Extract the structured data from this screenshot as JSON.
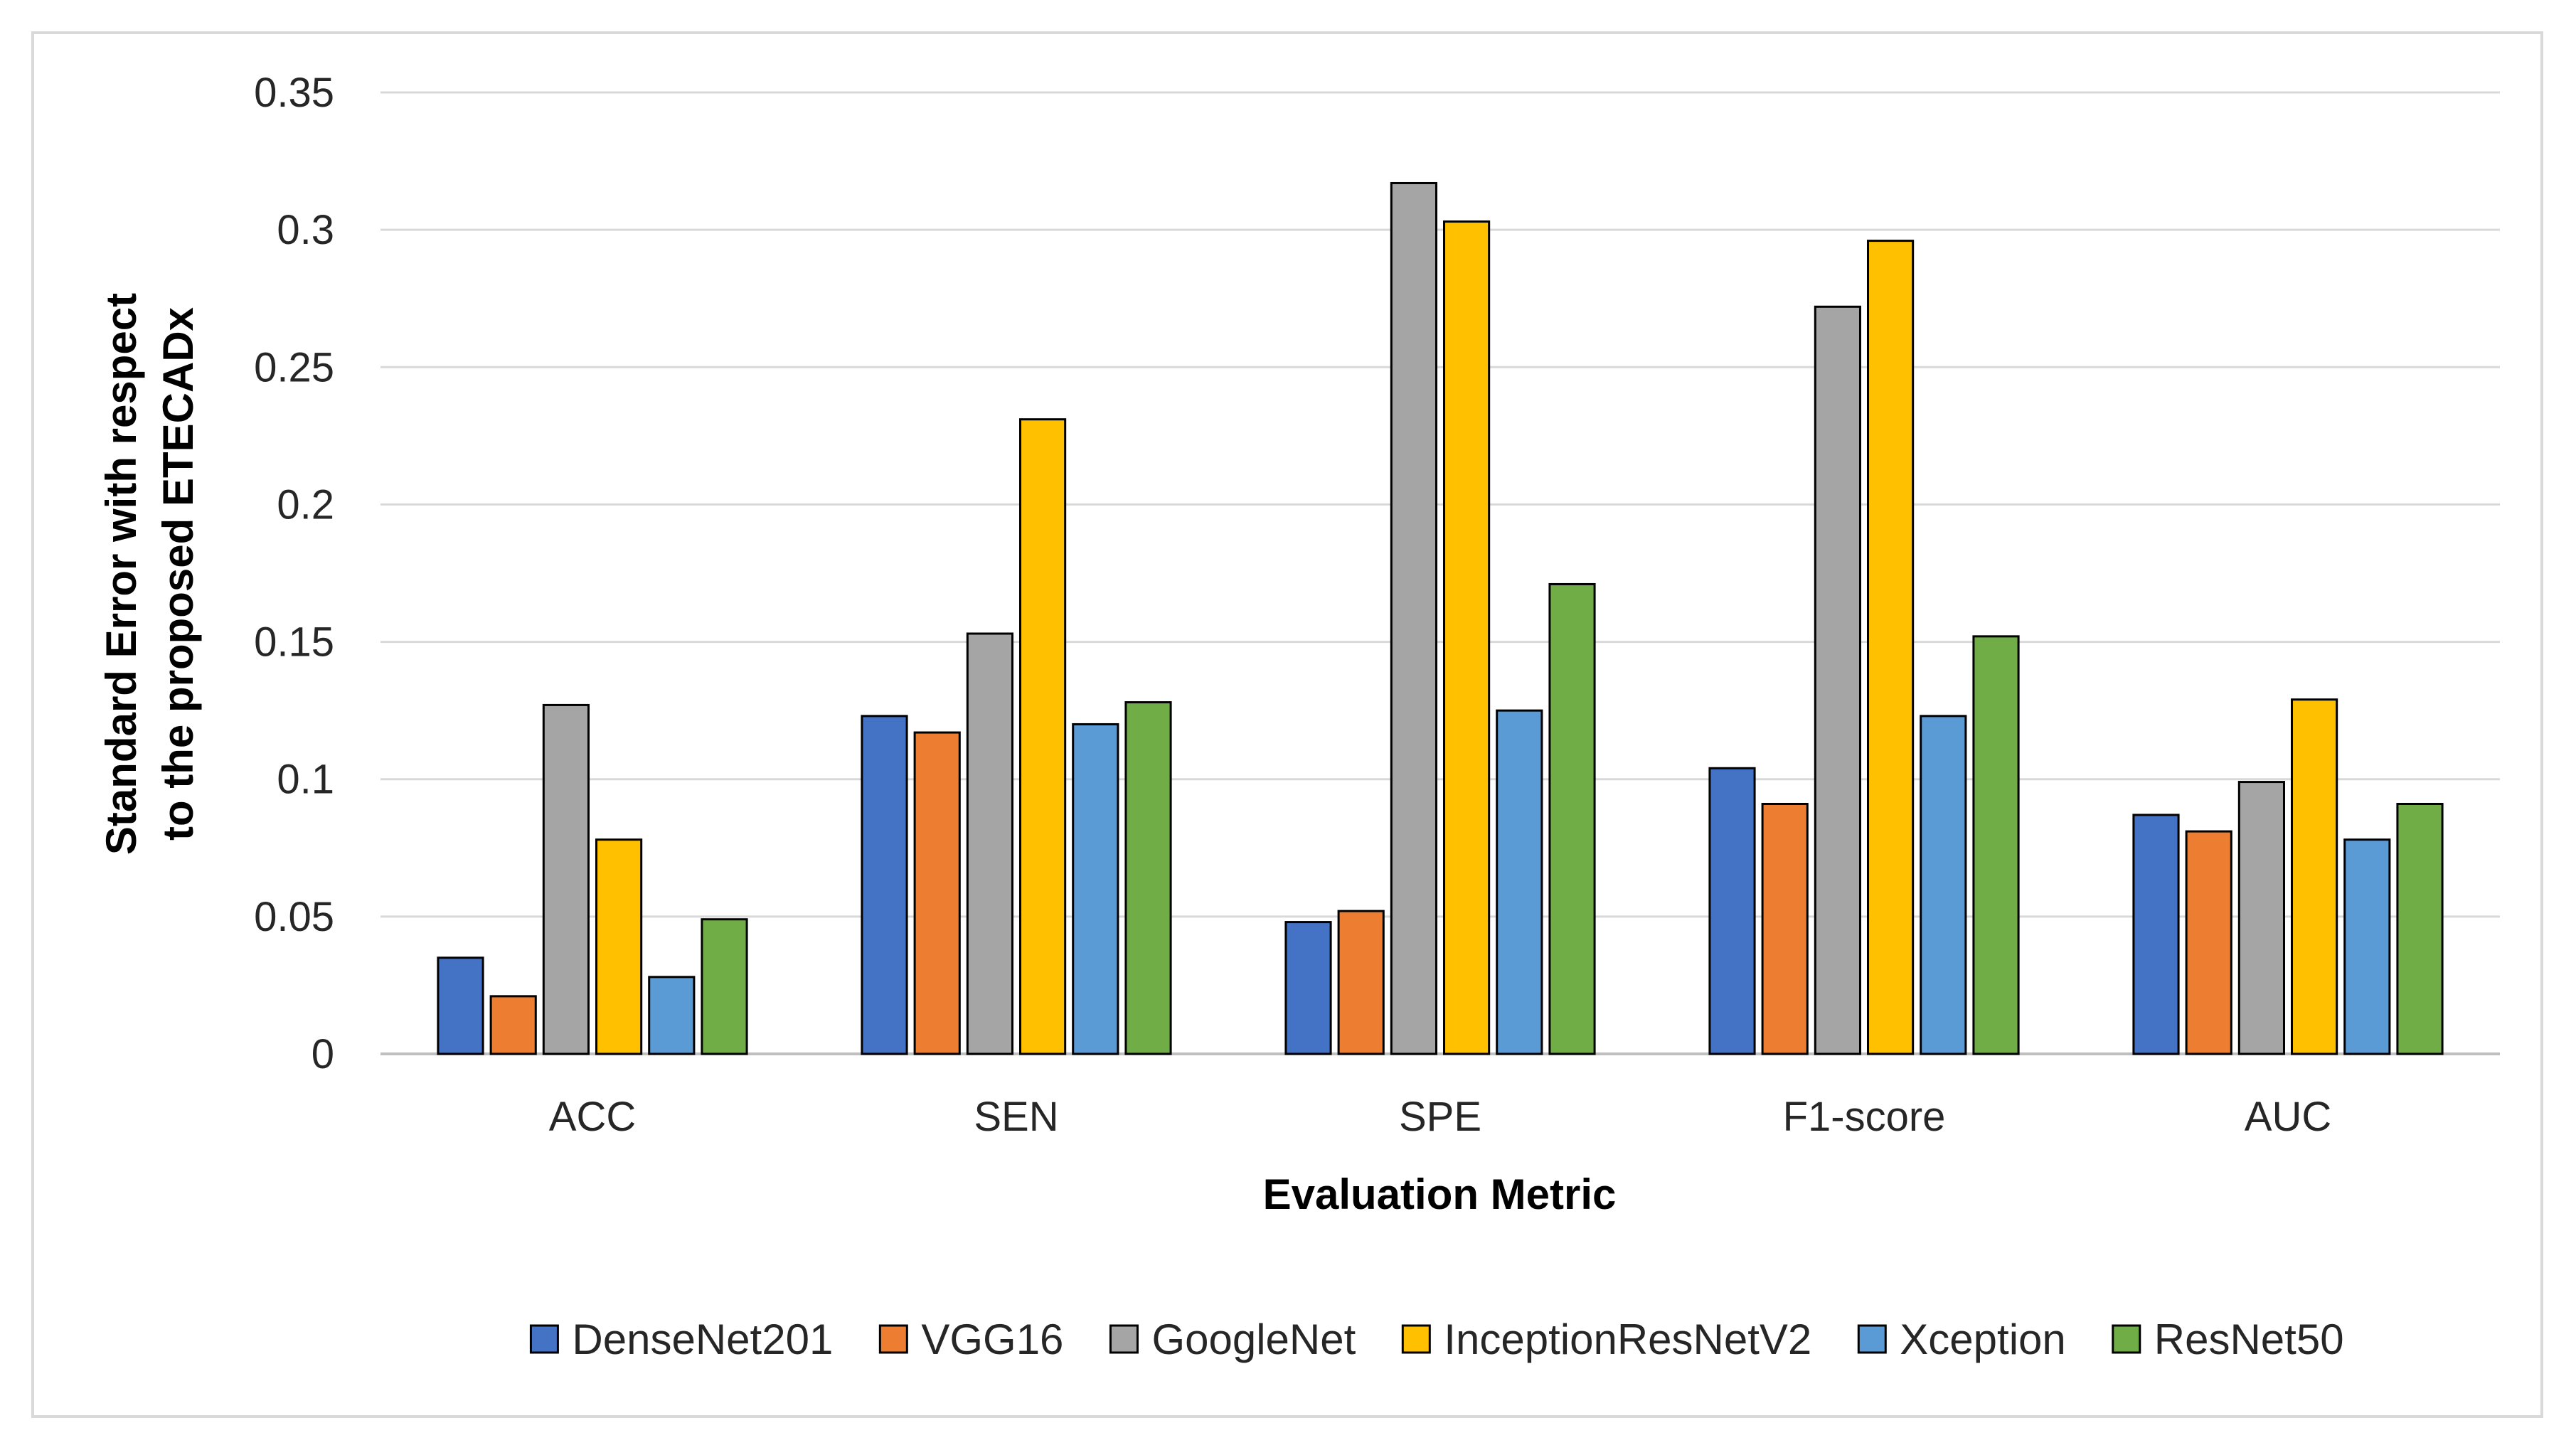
{
  "chart_data": {
    "type": "bar",
    "title": "",
    "xlabel": "Evaluation Metric",
    "ylabel_lines": [
      "Standard Error with respect",
      "to the proposed ETECADx"
    ],
    "categories": [
      "ACC",
      "SEN",
      "SPE",
      "F1-score",
      "AUC"
    ],
    "ylim": [
      0,
      0.35
    ],
    "yticks": [
      0,
      0.05,
      0.1,
      0.15,
      0.2,
      0.25,
      0.3,
      0.35
    ],
    "ytick_labels": [
      "0",
      "0.05",
      "0.1",
      "0.15",
      "0.2",
      "0.25",
      "0.3",
      "0.35"
    ],
    "grid": true,
    "legend_position": "bottom",
    "series": [
      {
        "name": "DenseNet201",
        "color": "#4472c4",
        "values": [
          0.035,
          0.123,
          0.048,
          0.104,
          0.087
        ]
      },
      {
        "name": "VGG16",
        "color": "#ed7d31",
        "values": [
          0.021,
          0.117,
          0.052,
          0.091,
          0.081
        ]
      },
      {
        "name": "GoogleNet",
        "color": "#a5a5a5",
        "values": [
          0.127,
          0.153,
          0.317,
          0.272,
          0.099
        ]
      },
      {
        "name": "InceptionResNetV2",
        "color": "#ffc000",
        "values": [
          0.078,
          0.231,
          0.303,
          0.296,
          0.129
        ]
      },
      {
        "name": "Xception",
        "color": "#5b9bd5",
        "values": [
          0.028,
          0.12,
          0.125,
          0.123,
          0.078
        ]
      },
      {
        "name": "ResNet50",
        "color": "#70ad47",
        "values": [
          0.049,
          0.128,
          0.171,
          0.152,
          0.091
        ]
      }
    ]
  }
}
